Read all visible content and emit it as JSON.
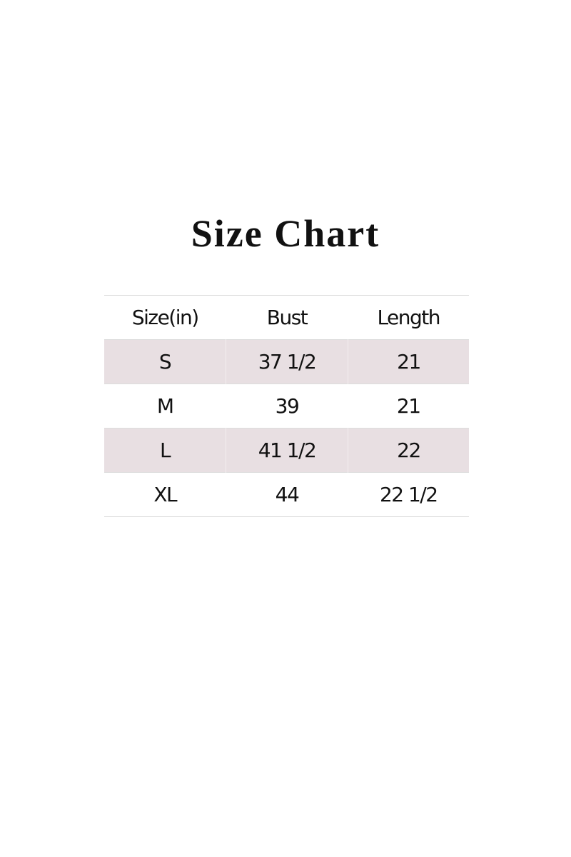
{
  "title": "Size Chart",
  "table": {
    "headers": [
      "Size(in)",
      "Bust",
      "Length"
    ],
    "rows": [
      [
        "S",
        "37 1/2",
        "21"
      ],
      [
        "M",
        "39",
        "21"
      ],
      [
        "L",
        "41 1/2",
        "22"
      ],
      [
        "XL",
        "44",
        "22 1/2"
      ]
    ],
    "shaded_row_color": "#e8dfe2"
  }
}
